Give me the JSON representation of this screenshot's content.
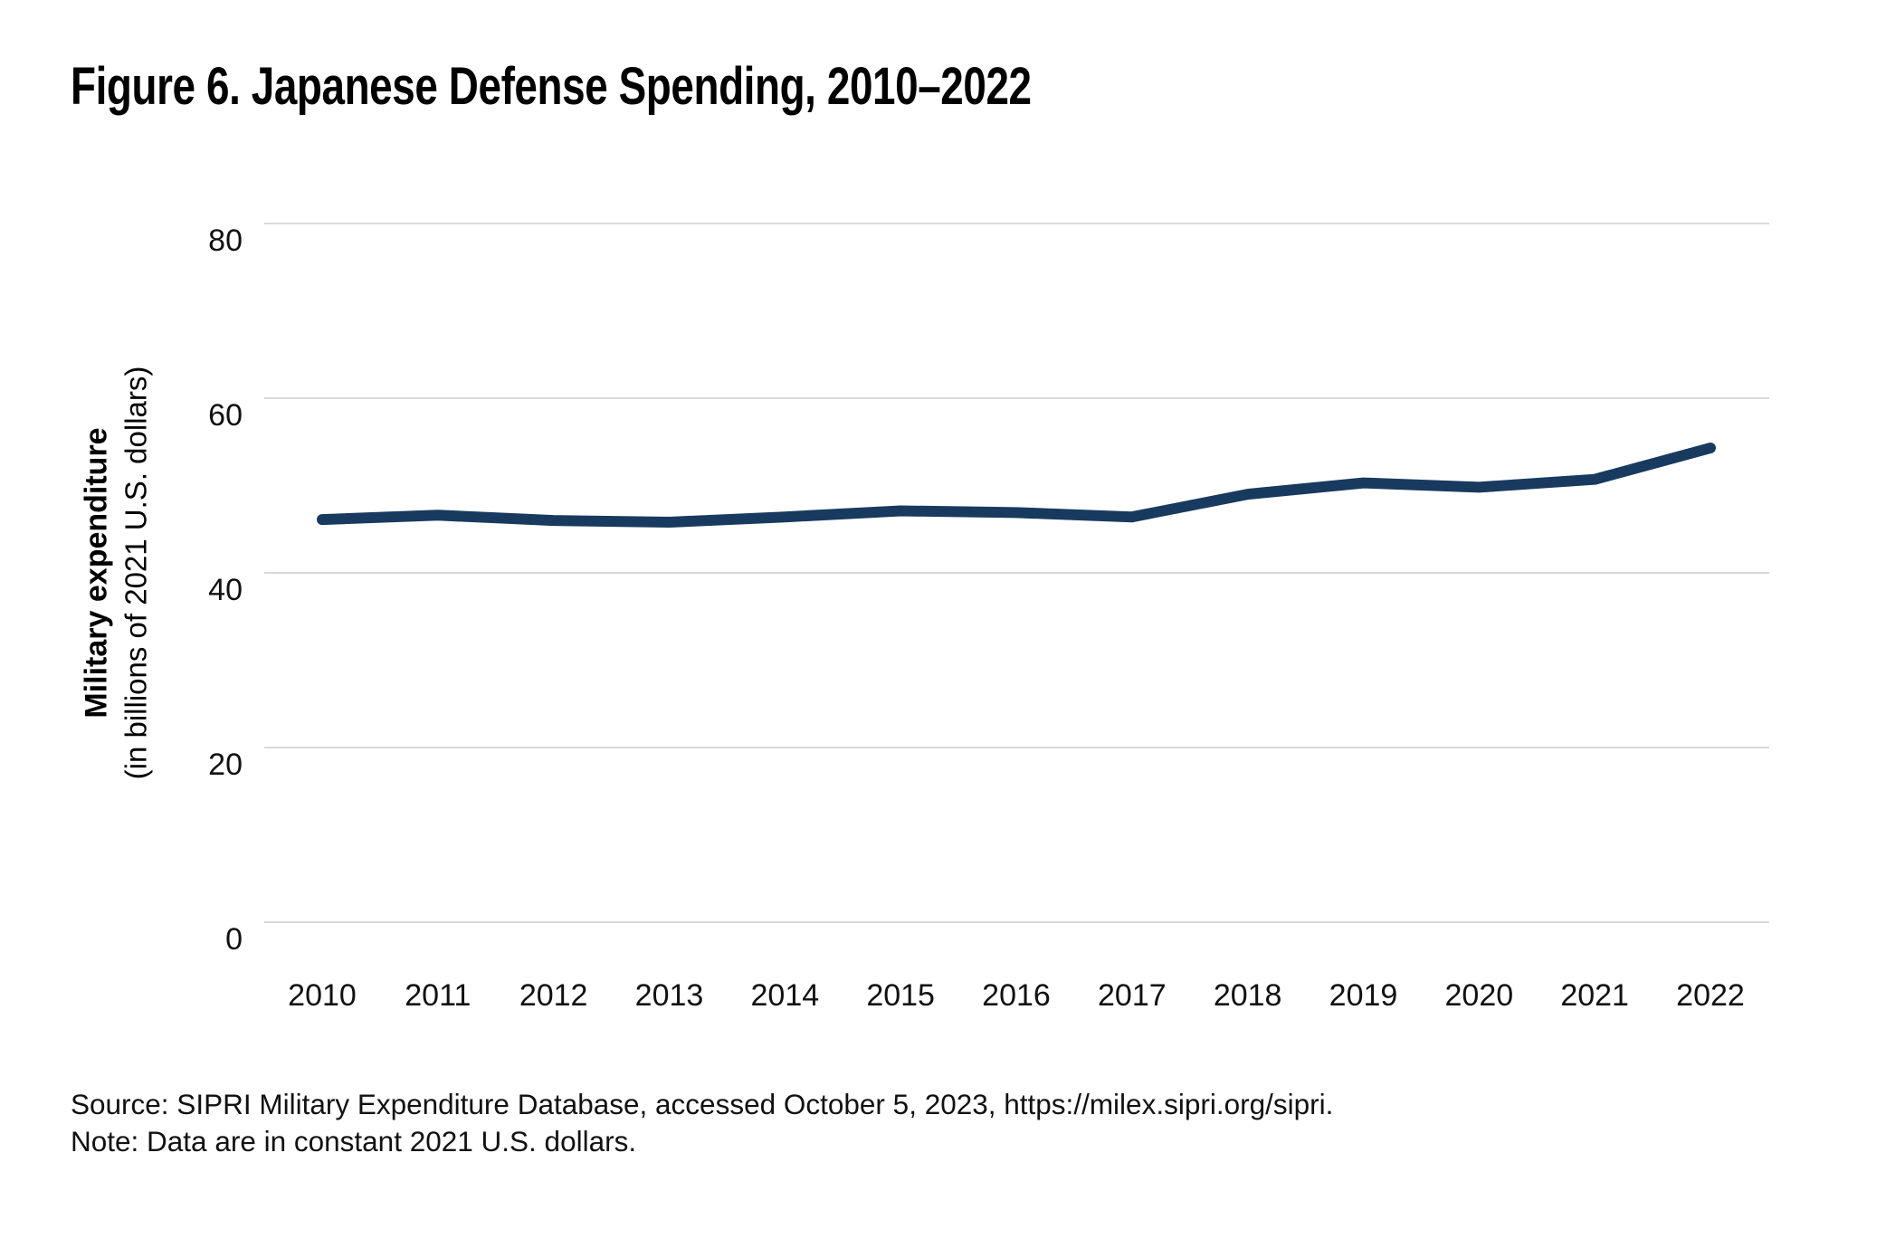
{
  "figure": {
    "title": "Figure 6. Japanese Defense Spending, 2010–2022"
  },
  "y_axis": {
    "label_line1": "Military expenditure",
    "label_line2": "(in billions of 2021 U.S. dollars)",
    "tick_labels": [
      80,
      60,
      40,
      20,
      0
    ]
  },
  "x_axis": {
    "tick_labels": [
      2010,
      2011,
      2012,
      2013,
      2014,
      2015,
      2016,
      2017,
      2018,
      2019,
      2020,
      2021,
      2022
    ]
  },
  "footer": {
    "source": "Source: SIPRI Military Expenditure Database, accessed October 5, 2023, https://milex.sipri.org/sipri.",
    "note": "Note: Data are in constant 2021 U.S. dollars."
  },
  "colors": {
    "line": "#183A5F",
    "gridline": "#D9D9D9"
  },
  "chart_data": {
    "type": "line",
    "title": "Figure 6. Japanese Defense Spending, 2010–2022",
    "x": [
      2010,
      2011,
      2012,
      2013,
      2014,
      2015,
      2016,
      2017,
      2018,
      2019,
      2020,
      2021,
      2022
    ],
    "series": [
      {
        "name": "Japanese defense spending",
        "values": [
          46.1,
          46.6,
          46.0,
          45.8,
          46.4,
          47.1,
          46.9,
          46.4,
          49.0,
          50.3,
          49.8,
          50.7,
          54.3
        ]
      }
    ],
    "xlabel": "",
    "ylabel": "Military expenditure (in billions of 2021 U.S. dollars)",
    "ylim": [
      0,
      80
    ],
    "yticks": [
      0,
      20,
      40,
      60,
      80
    ],
    "grid": true,
    "legend": false
  }
}
